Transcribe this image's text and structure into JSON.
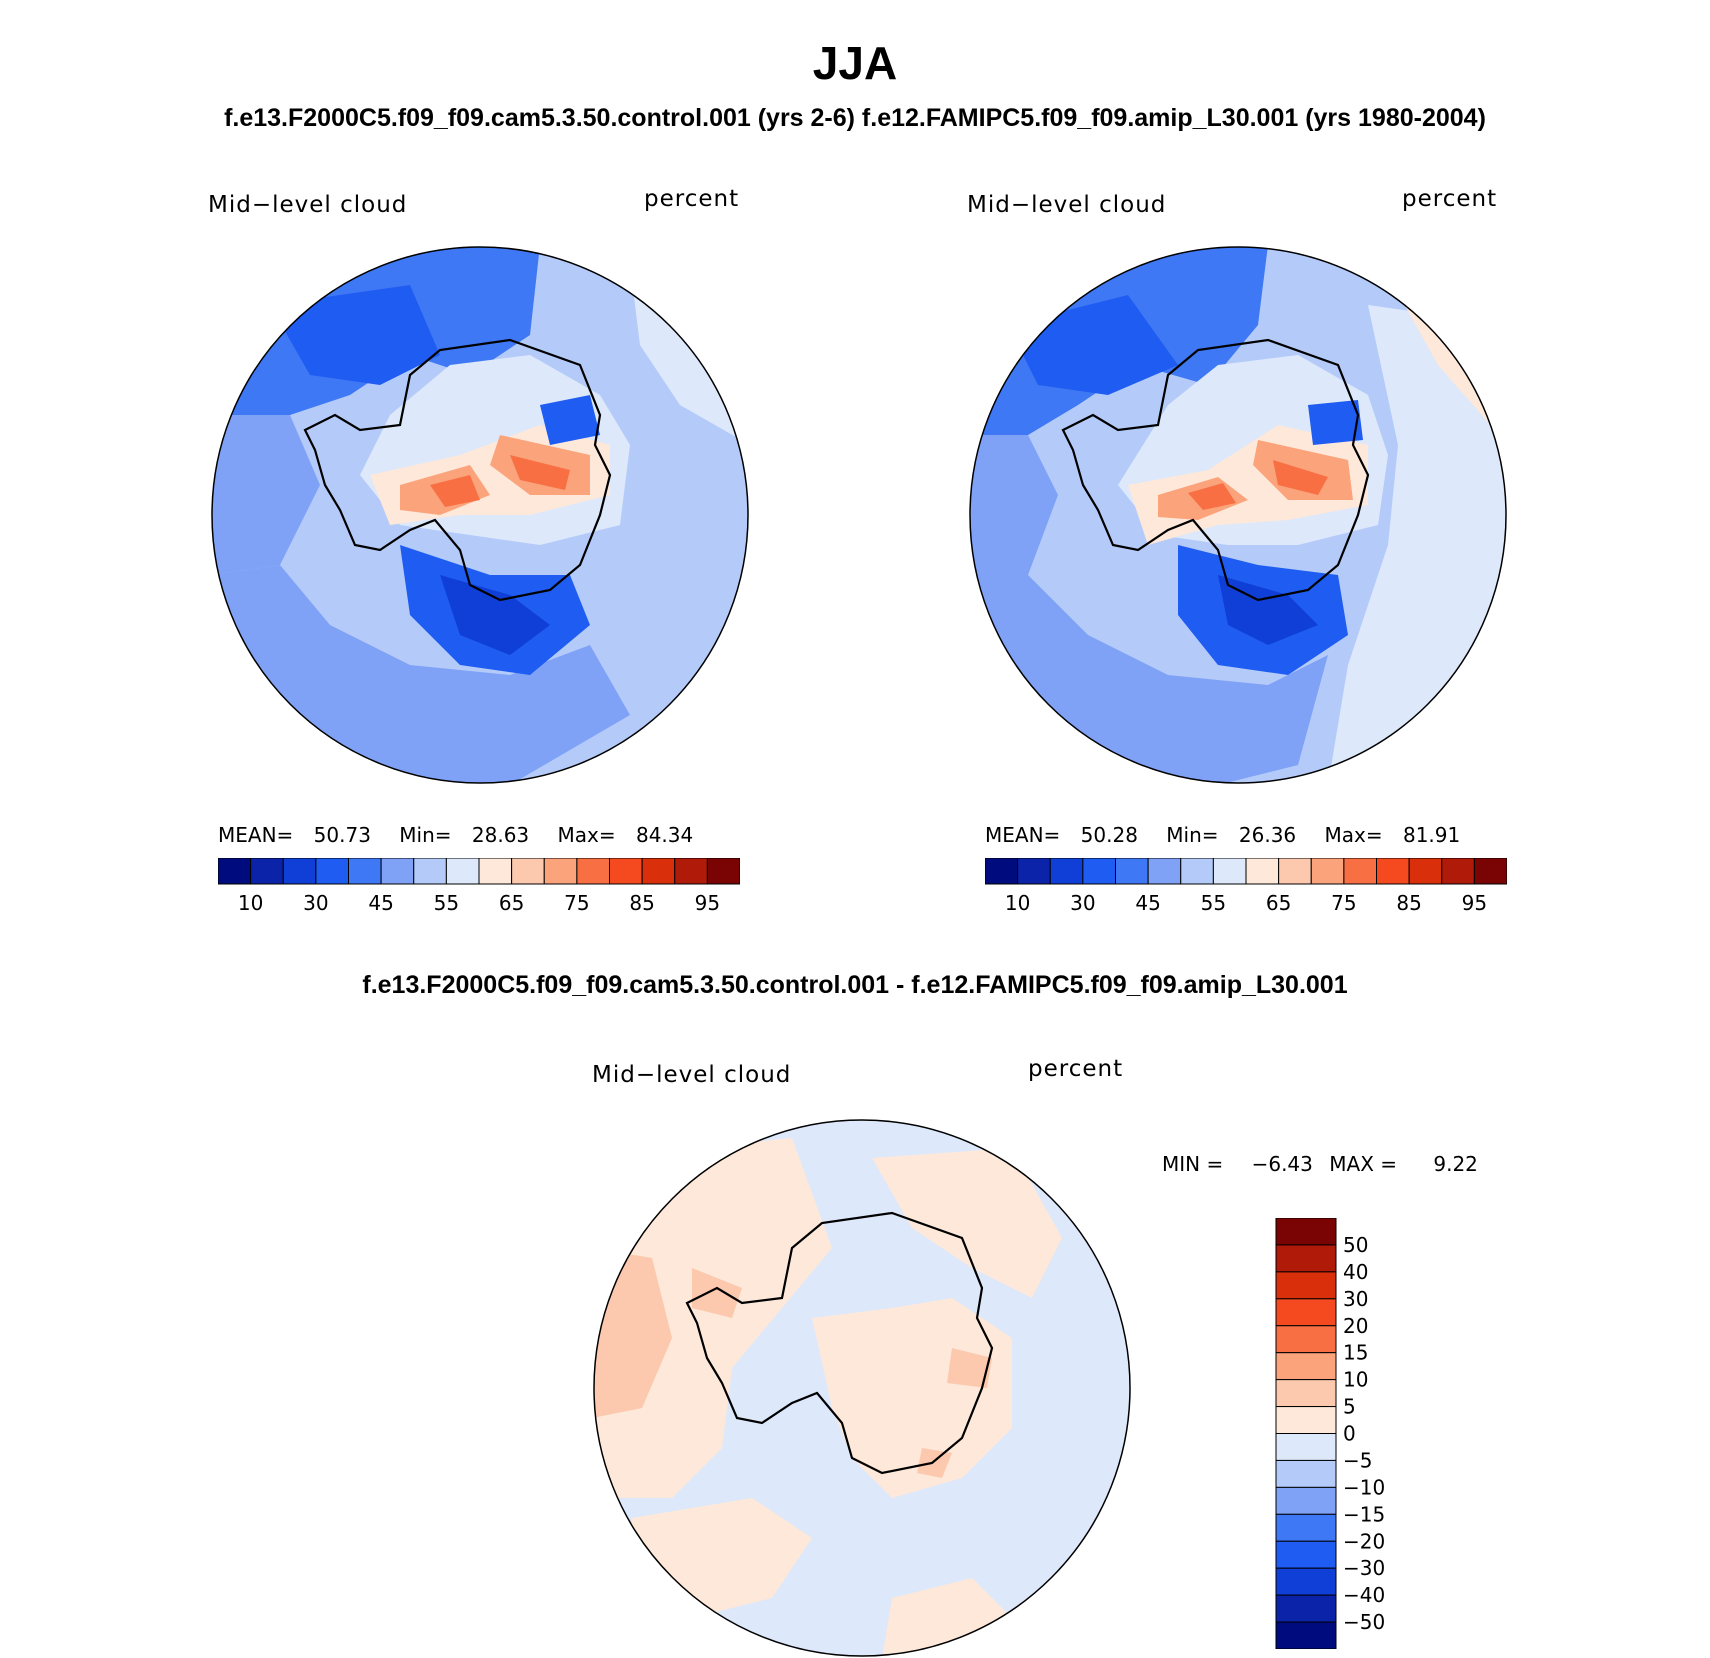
{
  "title": "JJA",
  "subtitle_top": "f.e13.F2000C5.f09_f09.cam5.3.50.control.001 (yrs 2-6)  f.e12.FAMIPC5.f09_f09.amip_L30.001 (yrs 1980-2004)",
  "subtitle_diff": "f.e13.F2000C5.f09_f09.cam5.3.50.control.001 - f.e12.FAMIPC5.f09_f09.amip_L30.001",
  "panels": [
    {
      "variable": "Mid−level cloud",
      "units": "percent",
      "stats": {
        "mean_label": "MEAN=",
        "mean": "50.73",
        "min_label": "Min=",
        "min": "28.63",
        "max_label": "Max=",
        "max": "84.34"
      }
    },
    {
      "variable": "Mid−level cloud",
      "units": "percent",
      "stats": {
        "mean_label": "MEAN=",
        "mean": "50.28",
        "min_label": "Min=",
        "min": "26.36",
        "max_label": "Max=",
        "max": "81.91"
      }
    },
    {
      "variable": "Mid−level cloud",
      "units": "percent",
      "stats": {
        "min_label": "MIN =",
        "min": "−6.43",
        "max_label": "MAX =",
        "max": "9.22"
      }
    }
  ],
  "chart_data": [
    {
      "type": "heatmap",
      "projection": "south polar stereographic",
      "variable": "Mid-level cloud",
      "units": "percent",
      "mean": 50.73,
      "min": 28.63,
      "max": 84.34,
      "colorbar": {
        "orientation": "horizontal",
        "tick_labels": [
          "10",
          "30",
          "45",
          "55",
          "65",
          "75",
          "85",
          "95"
        ],
        "colors": [
          "#000c7d",
          "#0a23a8",
          "#0f3fd6",
          "#1e5cf2",
          "#3f78f4",
          "#7fa2f7",
          "#b4cbfa",
          "#dde8fb",
          "#fde8da",
          "#fcc8ae",
          "#fba47c",
          "#f96f44",
          "#f54a1f",
          "#d92f0b",
          "#b01a08",
          "#7a0304"
        ]
      }
    },
    {
      "type": "heatmap",
      "projection": "south polar stereographic",
      "variable": "Mid-level cloud",
      "units": "percent",
      "mean": 50.28,
      "min": 26.36,
      "max": 81.91,
      "colorbar": {
        "orientation": "horizontal",
        "tick_labels": [
          "10",
          "30",
          "45",
          "55",
          "65",
          "75",
          "85",
          "95"
        ],
        "colors": [
          "#000c7d",
          "#0a23a8",
          "#0f3fd6",
          "#1e5cf2",
          "#3f78f4",
          "#7fa2f7",
          "#b4cbfa",
          "#dde8fb",
          "#fde8da",
          "#fcc8ae",
          "#fba47c",
          "#f96f44",
          "#f54a1f",
          "#d92f0b",
          "#b01a08",
          "#7a0304"
        ]
      }
    },
    {
      "type": "heatmap",
      "projection": "south polar stereographic",
      "variable": "Mid-level cloud",
      "units": "percent",
      "min": -6.43,
      "max": 9.22,
      "colorbar": {
        "orientation": "vertical",
        "tick_labels": [
          "50",
          "40",
          "30",
          "20",
          "15",
          "10",
          "5",
          "0",
          "−5",
          "−10",
          "−15",
          "−20",
          "−30",
          "−40",
          "−50"
        ],
        "colors": [
          "#7a0304",
          "#b01a08",
          "#d92f0b",
          "#f54a1f",
          "#f96f44",
          "#fba47c",
          "#fcc8ae",
          "#fde8da",
          "#dde8fb",
          "#b4cbfa",
          "#7fa2f7",
          "#3f78f4",
          "#1e5cf2",
          "#0f3fd6",
          "#0a23a8",
          "#000c7d"
        ]
      }
    }
  ]
}
